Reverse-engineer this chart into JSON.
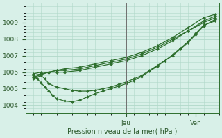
{
  "title": "",
  "xlabel": "Pression niveau de la mer( hPa )",
  "ylabel": "",
  "background_color": "#d8f0e8",
  "grid_color": "#b0d8c8",
  "line_color": "#2d6e2d",
  "marker_color": "#2d6e2d",
  "xlim": [
    0,
    50
  ],
  "ylim": [
    1003.5,
    1010.2
  ],
  "yticks": [
    1004,
    1005,
    1006,
    1007,
    1008,
    1009
  ],
  "xtick_jeu": 26,
  "xtick_ven": 44,
  "series": [
    {
      "x": [
        2,
        4,
        6,
        8,
        10,
        14,
        18,
        22,
        26,
        30,
        34,
        38,
        42,
        46,
        49
      ],
      "y": [
        1005.9,
        1006.0,
        1006.0,
        1006.1,
        1006.2,
        1006.3,
        1006.5,
        1006.7,
        1006.9,
        1007.2,
        1007.6,
        1008.1,
        1008.7,
        1009.3,
        1009.5
      ]
    },
    {
      "x": [
        2,
        4,
        6,
        8,
        10,
        14,
        18,
        22,
        26,
        30,
        34,
        38,
        42,
        46,
        49
      ],
      "y": [
        1005.8,
        1005.9,
        1006.0,
        1006.1,
        1006.1,
        1006.2,
        1006.4,
        1006.6,
        1006.8,
        1007.1,
        1007.5,
        1008.0,
        1008.5,
        1009.1,
        1009.4
      ]
    },
    {
      "x": [
        2,
        4,
        6,
        8,
        10,
        14,
        18,
        22,
        26,
        30,
        34,
        38,
        42,
        46,
        49
      ],
      "y": [
        1005.7,
        1005.85,
        1006.0,
        1006.0,
        1006.0,
        1006.1,
        1006.3,
        1006.5,
        1006.7,
        1007.0,
        1007.4,
        1007.9,
        1008.5,
        1009.0,
        1009.3
      ]
    },
    {
      "x": [
        2,
        4,
        5,
        6,
        8,
        10,
        12,
        14,
        16,
        18,
        20,
        22,
        24,
        26,
        28,
        30,
        32,
        34,
        36,
        38,
        40,
        42,
        44,
        46,
        49
      ],
      "y": [
        1005.6,
        1005.8,
        1005.6,
        1005.3,
        1005.1,
        1005.0,
        1004.9,
        1004.85,
        1004.85,
        1004.9,
        1005.0,
        1005.1,
        1005.25,
        1005.4,
        1005.6,
        1005.8,
        1006.1,
        1006.4,
        1006.7,
        1007.0,
        1007.4,
        1007.8,
        1008.3,
        1008.8,
        1009.2
      ]
    },
    {
      "x": [
        2,
        3,
        4,
        5,
        6,
        7,
        8,
        10,
        12,
        14,
        16,
        18,
        20,
        22,
        24,
        26,
        28,
        30,
        32,
        34,
        36,
        38,
        40,
        42,
        44,
        46,
        49
      ],
      "y": [
        1005.75,
        1005.6,
        1005.35,
        1005.1,
        1004.85,
        1004.6,
        1004.4,
        1004.25,
        1004.2,
        1004.3,
        1004.5,
        1004.7,
        1004.85,
        1005.0,
        1005.15,
        1005.3,
        1005.5,
        1005.75,
        1006.05,
        1006.35,
        1006.7,
        1007.05,
        1007.45,
        1007.85,
        1008.35,
        1008.85,
        1009.1
      ]
    }
  ]
}
